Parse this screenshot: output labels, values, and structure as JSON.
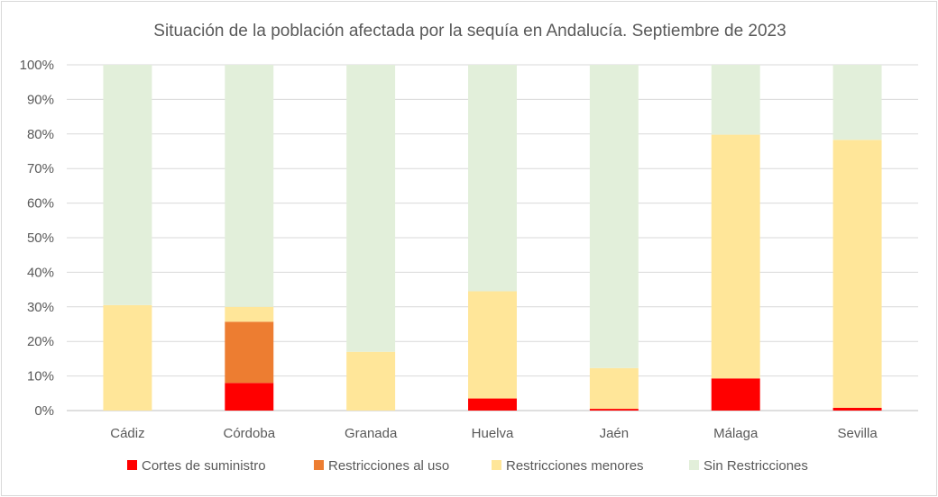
{
  "chart_data": {
    "type": "bar",
    "stacked": true,
    "title": "Situación de la población afectada por la sequía en Andalucía. Septiembre de 2023",
    "categories": [
      "Cádiz",
      "Córdoba",
      "Granada",
      "Huelva",
      "Jaén",
      "Málaga",
      "Sevilla"
    ],
    "series": [
      {
        "name": "Cortes de suministro",
        "color": "#ff0000",
        "values": [
          0,
          8,
          0,
          3.5,
          0.5,
          9.3,
          0.8
        ]
      },
      {
        "name": "Restricciones al uso",
        "color": "#ed7d31",
        "values": [
          0,
          17.7,
          0,
          0,
          0,
          0,
          0
        ]
      },
      {
        "name": "Restricciones menores",
        "color": "#ffe699",
        "values": [
          30.5,
          4.3,
          17,
          31,
          11.8,
          70.5,
          77.5
        ]
      },
      {
        "name": "Sin Restricciones",
        "color": "#e2efda",
        "values": [
          69.5,
          70,
          83,
          65.5,
          87.7,
          20.2,
          21.7
        ]
      }
    ],
    "y_ticks": [
      "0%",
      "10%",
      "20%",
      "30%",
      "40%",
      "50%",
      "60%",
      "70%",
      "80%",
      "90%",
      "100%"
    ],
    "ylim": [
      0,
      100
    ],
    "grid": true,
    "legend_position": "bottom"
  }
}
